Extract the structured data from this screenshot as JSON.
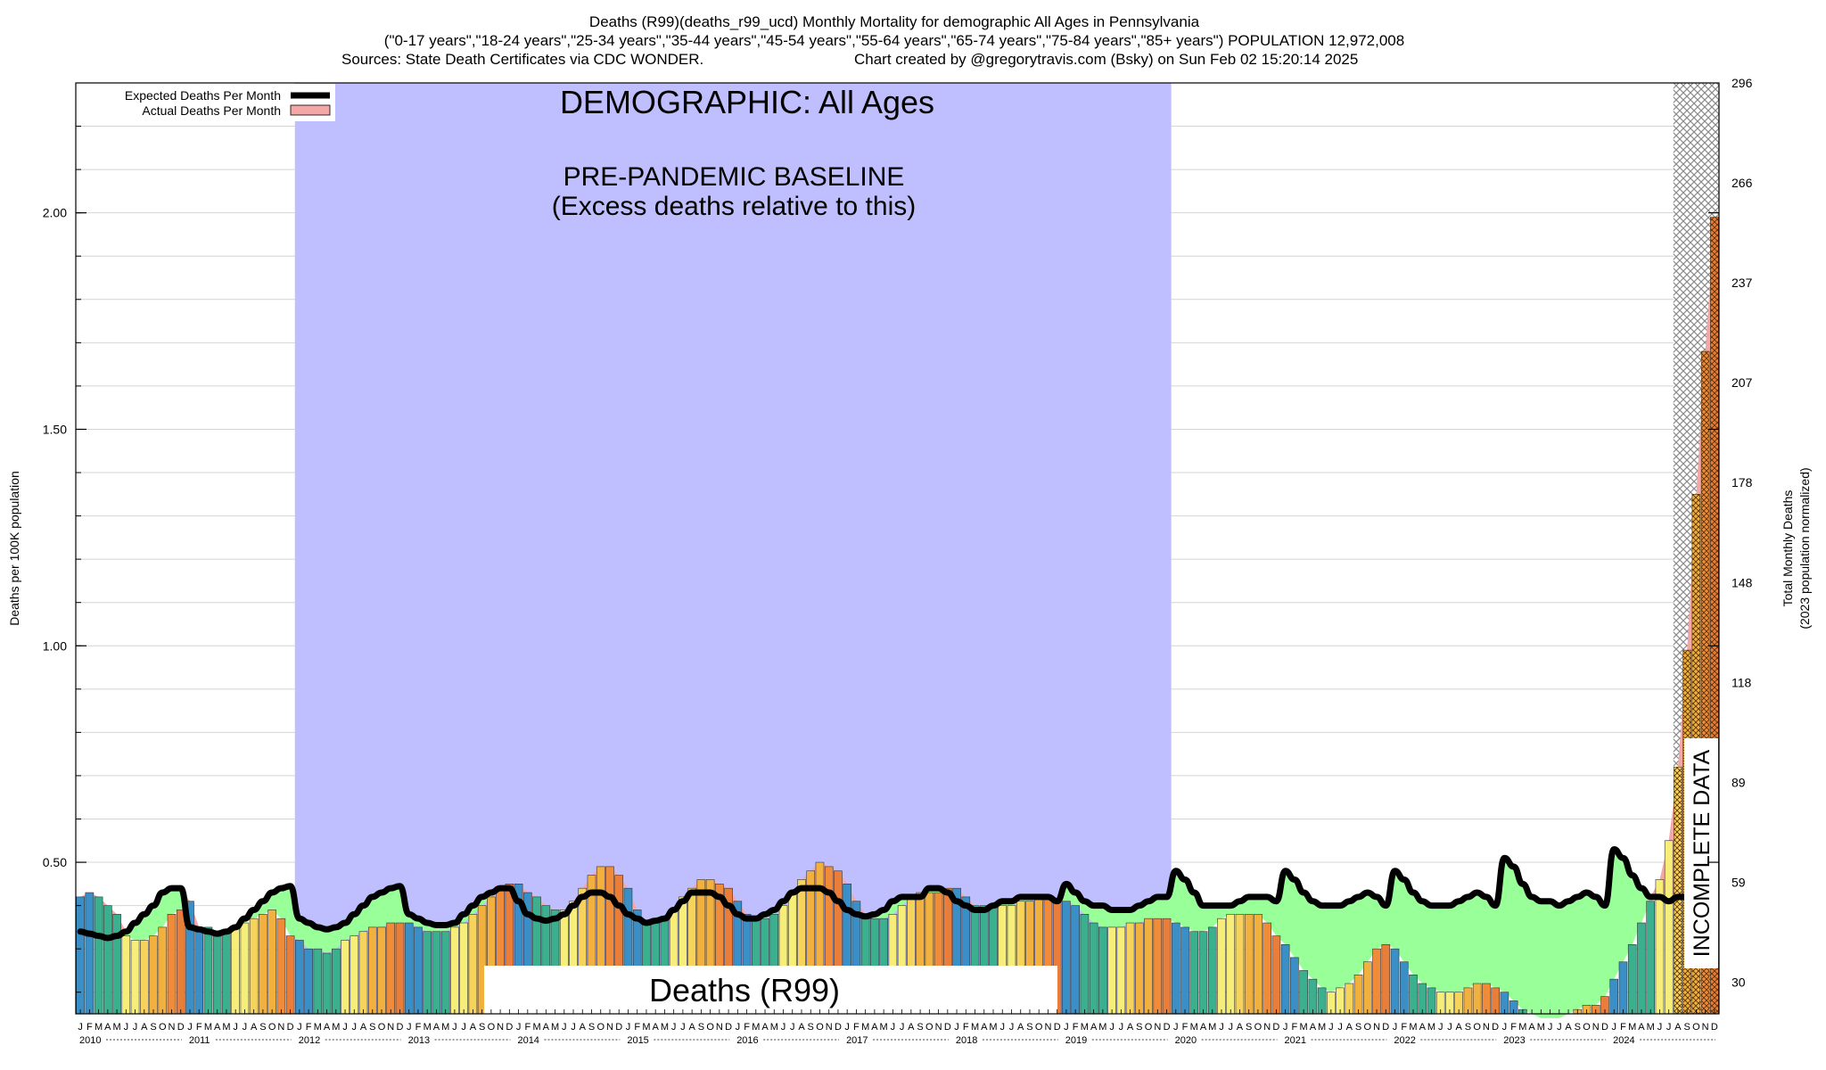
{
  "header": {
    "line1": "Deaths (R99)(deaths_r99_ucd) Monthly Mortality for demographic All Ages in Pennsylvania",
    "line2": "(\"0-17 years\",\"18-24 years\",\"25-34 years\",\"35-44 years\",\"45-54 years\",\"55-64 years\",\"65-74 years\",\"75-84 years\",\"85+ years\") POPULATION 12,972,008",
    "line3_left": "Sources: State Death Certificates via CDC WONDER.",
    "line3_right": "Chart created by @gregorytravis.com (Bsky) on Sun Feb 02 15:20:14 2025"
  },
  "legend": {
    "expected": "Expected Deaths Per Month",
    "actual": "Actual Deaths Per Month"
  },
  "annotations": {
    "demographic": "DEMOGRAPHIC: All Ages",
    "baseline_line1": "PRE-PANDEMIC BASELINE",
    "baseline_line2": "(Excess deaths relative to this)",
    "cause": "Deaths (R99)",
    "incomplete": "INCOMPLETE DATA"
  },
  "colors": {
    "baseline_band": "#bfbfff",
    "excess_fill": "#99ff99",
    "expected_line": "#000000",
    "actual_legend": "#f4a7a7",
    "incomplete_hatch": "#9a9a9a",
    "month_palette": [
      "#3a8fc7",
      "#3a8fc7",
      "#3bb08f",
      "#3bb08f",
      "#3bb08f",
      "#f6ee79",
      "#f6ee79",
      "#f6d35a",
      "#f2b13f",
      "#f2b13f",
      "#f08b3a",
      "#e87e39"
    ]
  },
  "chart_data": {
    "type": "bar",
    "months_per_year": 12,
    "start_year": 2010,
    "years": [
      "2010",
      "2011",
      "2012",
      "2013",
      "2014",
      "2015",
      "2016",
      "2017",
      "2018",
      "2019",
      "2020",
      "2021",
      "2022",
      "2023",
      "2024"
    ],
    "month_labels": [
      "J",
      "F",
      "M",
      "A",
      "M",
      "J",
      "J",
      "A",
      "S",
      "O",
      "N",
      "D"
    ],
    "ylabel": "Deaths per 100K population",
    "y2label": "Total Monthly Deaths",
    "y2label_sub": "(2023 population normalized)",
    "ylim": [
      0.15,
      2.3
    ],
    "y_ticks": [
      "0.50",
      "1.00",
      "1.50",
      "2.00"
    ],
    "y_tick_values": [
      0.5,
      1.0,
      1.5,
      2.0
    ],
    "y2_ticks": [
      "30",
      "59",
      "89",
      "118",
      "148",
      "178",
      "207",
      "237",
      "266",
      "296"
    ],
    "baseline_period": [
      "2012-01",
      "2019-12"
    ],
    "incomplete_period": [
      "2024-08",
      "2024-12"
    ],
    "series": [
      {
        "name": "Actual Deaths Per Month",
        "values": [
          0.42,
          0.43,
          0.42,
          0.4,
          0.38,
          0.33,
          0.32,
          0.32,
          0.33,
          0.35,
          0.38,
          0.39,
          0.41,
          0.35,
          0.35,
          0.34,
          0.34,
          0.35,
          0.36,
          0.37,
          0.38,
          0.39,
          0.37,
          0.33,
          0.32,
          0.3,
          0.3,
          0.29,
          0.3,
          0.32,
          0.33,
          0.34,
          0.35,
          0.35,
          0.36,
          0.36,
          0.36,
          0.35,
          0.34,
          0.34,
          0.34,
          0.35,
          0.36,
          0.38,
          0.4,
          0.42,
          0.44,
          0.45,
          0.45,
          0.43,
          0.42,
          0.4,
          0.39,
          0.39,
          0.41,
          0.44,
          0.47,
          0.49,
          0.49,
          0.47,
          0.44,
          0.39,
          0.36,
          0.36,
          0.37,
          0.39,
          0.42,
          0.44,
          0.46,
          0.46,
          0.45,
          0.44,
          0.41,
          0.38,
          0.37,
          0.37,
          0.38,
          0.4,
          0.43,
          0.46,
          0.48,
          0.5,
          0.49,
          0.48,
          0.45,
          0.41,
          0.38,
          0.37,
          0.37,
          0.38,
          0.4,
          0.42,
          0.43,
          0.43,
          0.43,
          0.44,
          0.44,
          0.42,
          0.4,
          0.4,
          0.4,
          0.4,
          0.4,
          0.41,
          0.41,
          0.42,
          0.42,
          0.41,
          0.41,
          0.4,
          0.38,
          0.36,
          0.35,
          0.35,
          0.35,
          0.36,
          0.36,
          0.37,
          0.37,
          0.37,
          0.36,
          0.35,
          0.34,
          0.34,
          0.35,
          0.37,
          0.38,
          0.38,
          0.38,
          0.38,
          0.36,
          0.33,
          0.31,
          0.28,
          0.25,
          0.23,
          0.21,
          0.2,
          0.21,
          0.22,
          0.24,
          0.27,
          0.3,
          0.31,
          0.3,
          0.27,
          0.24,
          0.22,
          0.21,
          0.2,
          0.2,
          0.2,
          0.21,
          0.22,
          0.22,
          0.21,
          0.2,
          0.18,
          0.16,
          0.15,
          0.14,
          0.14,
          0.14,
          0.15,
          0.16,
          0.17,
          0.17,
          0.19,
          0.23,
          0.27,
          0.31,
          0.36,
          0.41,
          0.46,
          0.55,
          0.72,
          0.99,
          1.35,
          1.68,
          1.99
        ]
      },
      {
        "name": "Expected Deaths Per Month",
        "values": [
          0.34,
          0.335,
          0.33,
          0.325,
          0.33,
          0.34,
          0.36,
          0.38,
          0.4,
          0.43,
          0.44,
          0.44,
          0.35,
          0.345,
          0.34,
          0.335,
          0.34,
          0.35,
          0.37,
          0.39,
          0.41,
          0.43,
          0.44,
          0.445,
          0.37,
          0.36,
          0.35,
          0.345,
          0.35,
          0.36,
          0.38,
          0.4,
          0.42,
          0.43,
          0.44,
          0.445,
          0.38,
          0.37,
          0.36,
          0.355,
          0.355,
          0.36,
          0.38,
          0.4,
          0.42,
          0.43,
          0.44,
          0.44,
          0.41,
          0.38,
          0.37,
          0.365,
          0.37,
          0.38,
          0.4,
          0.42,
          0.43,
          0.43,
          0.42,
          0.4,
          0.38,
          0.37,
          0.36,
          0.365,
          0.37,
          0.39,
          0.41,
          0.43,
          0.43,
          0.43,
          0.42,
          0.4,
          0.38,
          0.37,
          0.37,
          0.38,
          0.39,
          0.41,
          0.43,
          0.44,
          0.44,
          0.44,
          0.43,
          0.41,
          0.39,
          0.38,
          0.375,
          0.38,
          0.39,
          0.41,
          0.42,
          0.42,
          0.42,
          0.44,
          0.44,
          0.43,
          0.41,
          0.4,
          0.39,
          0.39,
          0.4,
          0.41,
          0.41,
          0.42,
          0.42,
          0.42,
          0.42,
          0.41,
          0.45,
          0.43,
          0.41,
          0.4,
          0.4,
          0.39,
          0.39,
          0.39,
          0.4,
          0.41,
          0.42,
          0.42,
          0.48,
          0.46,
          0.43,
          0.4,
          0.4,
          0.4,
          0.4,
          0.41,
          0.42,
          0.42,
          0.42,
          0.41,
          0.48,
          0.46,
          0.43,
          0.41,
          0.4,
          0.4,
          0.4,
          0.41,
          0.42,
          0.43,
          0.42,
          0.4,
          0.48,
          0.46,
          0.43,
          0.41,
          0.4,
          0.4,
          0.4,
          0.41,
          0.42,
          0.43,
          0.42,
          0.4,
          0.51,
          0.49,
          0.45,
          0.42,
          0.41,
          0.41,
          0.4,
          0.41,
          0.42,
          0.43,
          0.42,
          0.4,
          0.53,
          0.51,
          0.47,
          0.44,
          0.42,
          0.42,
          0.41,
          0.42,
          0.42,
          0.43,
          0.43,
          0.44
        ]
      }
    ]
  }
}
